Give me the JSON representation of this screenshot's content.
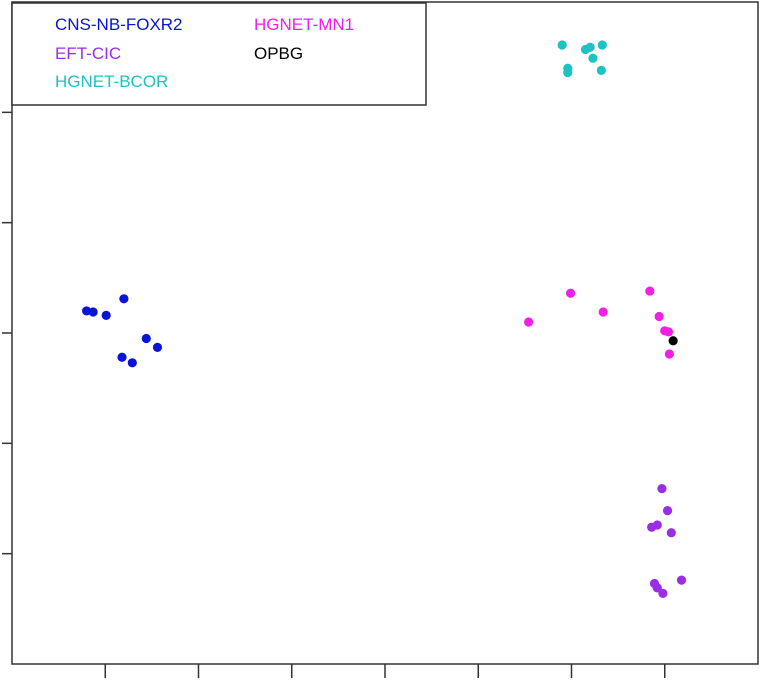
{
  "chart_data": {
    "type": "scatter",
    "title": "",
    "xlabel": "",
    "ylabel": "",
    "grid": false,
    "legend_placement": "top-left",
    "series": [
      {
        "name": "CNS-NB-FOXR2",
        "color": "#0a14d8",
        "points": [
          {
            "x": -32,
            "y": 2
          },
          {
            "x": -31.3,
            "y": 1.9
          },
          {
            "x": -29.9,
            "y": 1.6
          },
          {
            "x": -28,
            "y": 3.1
          },
          {
            "x": -25.6,
            "y": -0.5
          },
          {
            "x": -24.4,
            "y": -1.3
          },
          {
            "x": -28.2,
            "y": -2.2
          },
          {
            "x": -27.1,
            "y": -2.7
          }
        ]
      },
      {
        "name": "EFT-CIC",
        "color": "#9a2ee6",
        "points": [
          {
            "x": 29.7,
            "y": -14.1
          },
          {
            "x": 30.3,
            "y": -16.1
          },
          {
            "x": 29.2,
            "y": -17.4
          },
          {
            "x": 28.6,
            "y": -17.6
          },
          {
            "x": 30.7,
            "y": -18.1
          },
          {
            "x": 31.8,
            "y": -22.4
          },
          {
            "x": 28.9,
            "y": -22.7
          },
          {
            "x": 29.2,
            "y": -23.1
          },
          {
            "x": 29.8,
            "y": -23.6
          }
        ]
      },
      {
        "name": "HGNET-BCOR",
        "color": "#1fc2c2",
        "points": [
          {
            "x": 19,
            "y": 26.1
          },
          {
            "x": 21.5,
            "y": 25.7
          },
          {
            "x": 22,
            "y": 25.9
          },
          {
            "x": 23.3,
            "y": 26.1
          },
          {
            "x": 22.3,
            "y": 24.9
          },
          {
            "x": 19.6,
            "y": 24.0
          },
          {
            "x": 19.6,
            "y": 23.6
          },
          {
            "x": 23.2,
            "y": 23.8
          }
        ]
      },
      {
        "name": "HGNET-MN1",
        "color": "#f21fe6",
        "points": [
          {
            "x": 15.4,
            "y": 1.0
          },
          {
            "x": 19.9,
            "y": 3.6
          },
          {
            "x": 23.4,
            "y": 1.9
          },
          {
            "x": 28.4,
            "y": 3.8
          },
          {
            "x": 29.4,
            "y": 1.5
          },
          {
            "x": 30.0,
            "y": 0.2
          },
          {
            "x": 30.4,
            "y": 0.1
          },
          {
            "x": 30.5,
            "y": -1.9
          }
        ]
      },
      {
        "name": "OPBG",
        "color": "#000000",
        "points": [
          {
            "x": 30.9,
            "y": -0.7
          }
        ]
      }
    ],
    "xlim": [
      -40,
      40
    ],
    "ylim": [
      -30,
      30
    ],
    "xticks": [
      -30,
      -20,
      -10,
      0,
      10,
      20,
      30
    ],
    "yticks": [
      -20,
      -10,
      0,
      10,
      20
    ]
  }
}
